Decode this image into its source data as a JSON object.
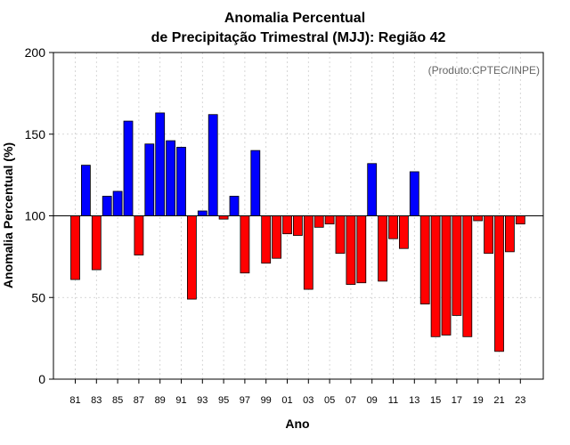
{
  "chart_data": {
    "type": "bar",
    "title": [
      "Anomalia Percentual",
      "de Precipitação Trimestral (MJJ): Região 42"
    ],
    "xlabel": "Ano",
    "ylabel": "Anomalia Percentual (%)",
    "credit": "(Produto:CPTEC/INPE)",
    "baseline": 100,
    "ylim": [
      0,
      200
    ],
    "yticks": [
      0,
      50,
      100,
      150,
      200
    ],
    "grid": true,
    "above_color": "#0000ff",
    "below_color": "#ff0000",
    "categories": [
      "81",
      "82",
      "83",
      "84",
      "85",
      "86",
      "87",
      "88",
      "89",
      "90",
      "91",
      "92",
      "93",
      "94",
      "95",
      "96",
      "97",
      "98",
      "99",
      "00",
      "01",
      "02",
      "03",
      "04",
      "05",
      "06",
      "07",
      "08",
      "09",
      "10",
      "11",
      "12",
      "13",
      "14",
      "15",
      "16",
      "17",
      "18",
      "19",
      "20",
      "21",
      "22",
      "23"
    ],
    "xtick_labels": [
      "81",
      "83",
      "85",
      "87",
      "89",
      "91",
      "93",
      "95",
      "97",
      "99",
      "01",
      "03",
      "05",
      "07",
      "09",
      "11",
      "13",
      "15",
      "17",
      "19",
      "21",
      "23"
    ],
    "values": [
      61,
      131,
      67,
      112,
      115,
      158,
      76,
      144,
      163,
      146,
      142,
      49,
      103,
      162,
      98,
      112,
      65,
      140,
      71,
      74,
      89,
      88,
      55,
      93,
      95,
      77,
      58,
      59,
      132,
      60,
      86,
      80,
      127,
      46,
      26,
      27,
      39,
      26,
      97,
      77,
      17,
      78,
      95
    ]
  }
}
